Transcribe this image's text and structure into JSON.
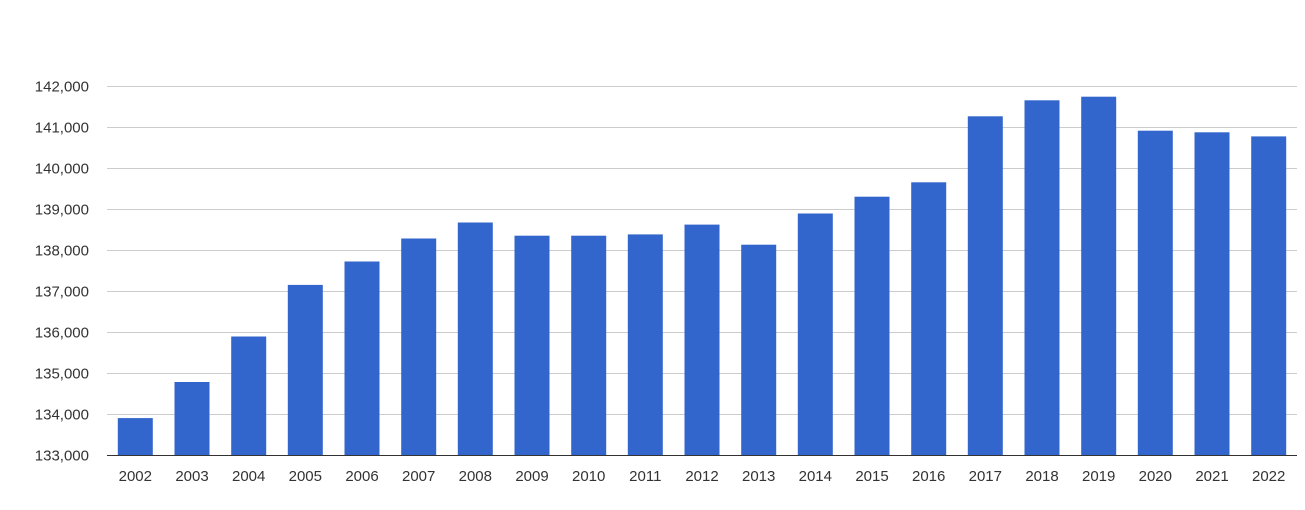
{
  "chart_data": {
    "type": "bar",
    "title": "",
    "xlabel": "",
    "ylabel": "",
    "categories": [
      "2002",
      "2003",
      "2004",
      "2005",
      "2006",
      "2007",
      "2008",
      "2009",
      "2010",
      "2011",
      "2012",
      "2013",
      "2014",
      "2015",
      "2016",
      "2017",
      "2018",
      "2019",
      "2020",
      "2021",
      "2022"
    ],
    "series": [
      {
        "values": [
          133900,
          134780,
          135890,
          137150,
          137720,
          138280,
          138670,
          138350,
          138350,
          138380,
          138620,
          138130,
          138890,
          139300,
          139650,
          141260,
          141650,
          141740,
          140910,
          140870,
          140770
        ],
        "color": "#3366cc"
      }
    ],
    "ylim": [
      133000,
      142000
    ],
    "yticks": [
      133000,
      134000,
      135000,
      136000,
      137000,
      138000,
      139000,
      140000,
      141000,
      142000
    ],
    "ytick_labels": [
      "133,000",
      "134,000",
      "135,000",
      "136,000",
      "137,000",
      "138,000",
      "139,000",
      "140,000",
      "141,000",
      "142,000"
    ],
    "grid": true,
    "legend": "none"
  }
}
